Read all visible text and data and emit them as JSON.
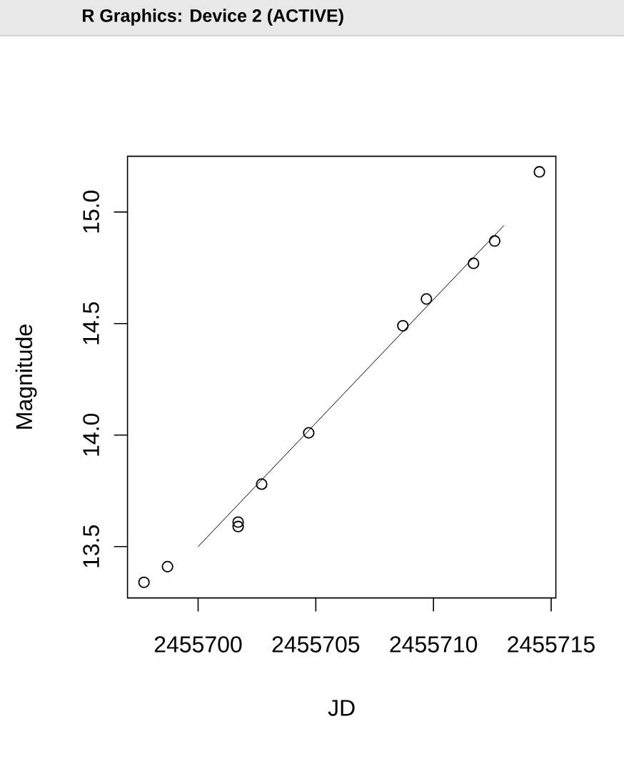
{
  "chart_data": {
    "type": "scatter",
    "annotations": [
      "R Graphics: Device 2 (ACTIVE)"
    ],
    "xlabel": "JD",
    "ylabel": "Magnitude",
    "xlim": [
      2455697.0,
      2455715.2
    ],
    "ylim": [
      13.27,
      15.25
    ],
    "xticks": [
      2455700,
      2455705,
      2455710,
      2455715
    ],
    "yticks": [
      13.5,
      {
        "value": 14,
        "label": "14.0"
      },
      14.5,
      {
        "value": 15,
        "label": "15.0"
      }
    ],
    "marker": "circle",
    "series": [
      {
        "color": "#000000",
        "x": [
          2455697.7,
          2455698.7,
          2455701.7,
          2455701.7,
          2455702.7,
          2455704.7,
          2455708.7,
          2455709.7,
          2455711.7,
          2455712.6,
          2455714.5
        ],
        "values": [
          13.34,
          13.41,
          13.61,
          13.59,
          13.78,
          14.01,
          14.49,
          14.61,
          14.77,
          14.87,
          15.18
        ]
      },
      {
        "type": "line",
        "color": "#000000",
        "marker": "none",
        "line_style": "solid",
        "x": [
          2455700.0,
          2455713.0
        ],
        "values": [
          13.5,
          14.94
        ]
      }
    ]
  }
}
